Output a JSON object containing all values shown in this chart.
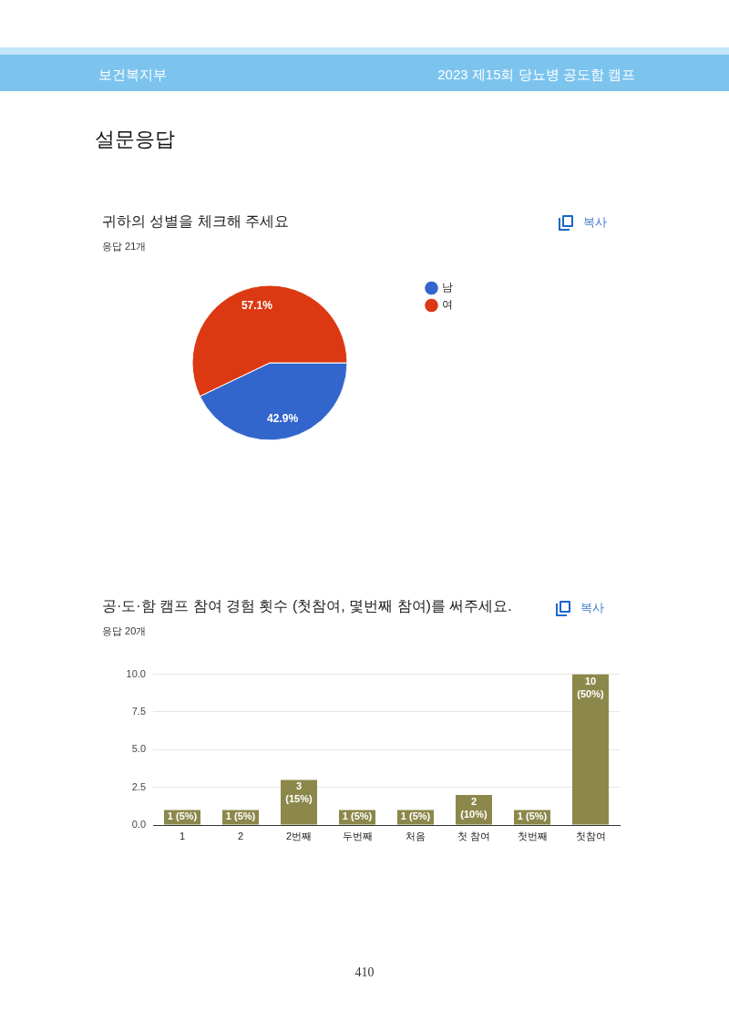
{
  "chart_data": [
    {
      "type": "pie",
      "title": "귀하의 성별을 체크해 주세요",
      "subtitle": "응답 21개",
      "categories": [
        "남",
        "여"
      ],
      "values": [
        42.9,
        57.1
      ],
      "colors": [
        "#3366cc",
        "#dc3912"
      ],
      "value_labels": [
        "42.9%",
        "57.1%"
      ],
      "legend": "right",
      "annotations": [
        "보건복지부",
        "2023 제15회 당뇨병 공도함 캠프",
        "설문응답",
        "복사"
      ]
    },
    {
      "type": "bar",
      "title": "공·도·함 캠프 참여 경험 횟수 (첫참여, 몇번째 참여)를 써주세요.",
      "subtitle": "응답 20개",
      "categories": [
        "1",
        "2",
        "2번째",
        "두번째",
        "처음",
        "첫 참여",
        "첫번째",
        "첫참여"
      ],
      "values": [
        1,
        1,
        3,
        1,
        1,
        2,
        1,
        10
      ],
      "color": "#8c884b",
      "value_labels": [
        "1 (5%)",
        "1 (5%)",
        "3 (15%)",
        "1 (5%)",
        "1 (5%)",
        "2 (10%)",
        "1 (5%)",
        "10 (50%)"
      ],
      "ylim": [
        0,
        10
      ],
      "yticks": [
        {
          "value": 0,
          "label": "0.0"
        },
        2.5,
        {
          "value": 5,
          "label": "5.0"
        },
        7.5,
        {
          "value": 10,
          "label": "10.0"
        }
      ],
      "grid": "y",
      "annotations": [
        "복사",
        "410"
      ]
    }
  ]
}
